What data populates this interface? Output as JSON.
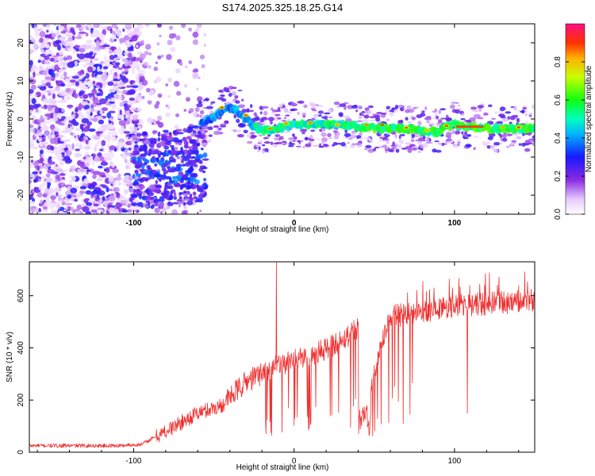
{
  "title": "S174.2025.325.18.25.G14",
  "chart_data": [
    {
      "type": "heatmap",
      "panel": "spectrogram",
      "xlabel": "Height of straight line (km)",
      "ylabel": "Frequency (Hz)",
      "xlim": [
        -165,
        150
      ],
      "ylim": [
        -25,
        25
      ],
      "xticks": [
        -100,
        0,
        100
      ],
      "yticks": [
        -20,
        -10,
        0,
        10,
        20
      ],
      "xtick_labels": [
        "-100",
        "0",
        "100"
      ],
      "ytick_labels": [
        "-20",
        "-10",
        "0",
        "10",
        "20"
      ],
      "colorbar": {
        "label": "Normalized spectral amplitude",
        "range": [
          0,
          1
        ],
        "ticks": [
          0.0,
          0.2,
          0.4,
          0.6,
          0.8
        ],
        "tick_labels": [
          "0.0",
          "0.2",
          "0.4",
          "0.6",
          "0.8"
        ]
      },
      "ridge": {
        "description_points_x": [
          -57,
          -50,
          -45,
          -40,
          -35,
          -30,
          -25,
          -20,
          -10,
          0,
          10,
          20,
          30,
          40,
          50,
          60,
          70,
          80,
          90,
          95,
          100,
          110,
          120,
          130,
          140,
          150
        ],
        "description_points_y": [
          -1,
          0.5,
          2,
          3,
          2,
          0,
          -2,
          -3,
          -2.5,
          -1.5,
          -1.5,
          -1.5,
          -1.5,
          -2,
          -2.5,
          -2.5,
          -2.5,
          -3,
          -3.5,
          -2,
          -1.5,
          -2,
          -2.5,
          -2.5,
          -2.5,
          -2.5
        ],
        "peak_amplitude": 1.0
      }
    },
    {
      "type": "line",
      "panel": "snr",
      "xlabel": "Height of straight line (km)",
      "ylabel": "SNR (10 * v/v)",
      "xlim": [
        -165,
        150
      ],
      "ylim": [
        0,
        730
      ],
      "xticks": [
        -100,
        0,
        100
      ],
      "yticks": [
        0,
        200,
        400,
        600
      ],
      "xtick_labels": [
        "-100",
        "0",
        "100"
      ],
      "ytick_labels": [
        "0",
        "200",
        "400",
        "600"
      ],
      "color": "#f03030",
      "trend_x": [
        -165,
        -110,
        -95,
        -80,
        -60,
        -45,
        -30,
        -15,
        0,
        15,
        30,
        40,
        45,
        50,
        55,
        60,
        80,
        100,
        120,
        150
      ],
      "trend_y": [
        25,
        25,
        30,
        80,
        150,
        180,
        270,
        320,
        350,
        380,
        430,
        480,
        130,
        300,
        430,
        520,
        540,
        560,
        570,
        580
      ]
    }
  ]
}
